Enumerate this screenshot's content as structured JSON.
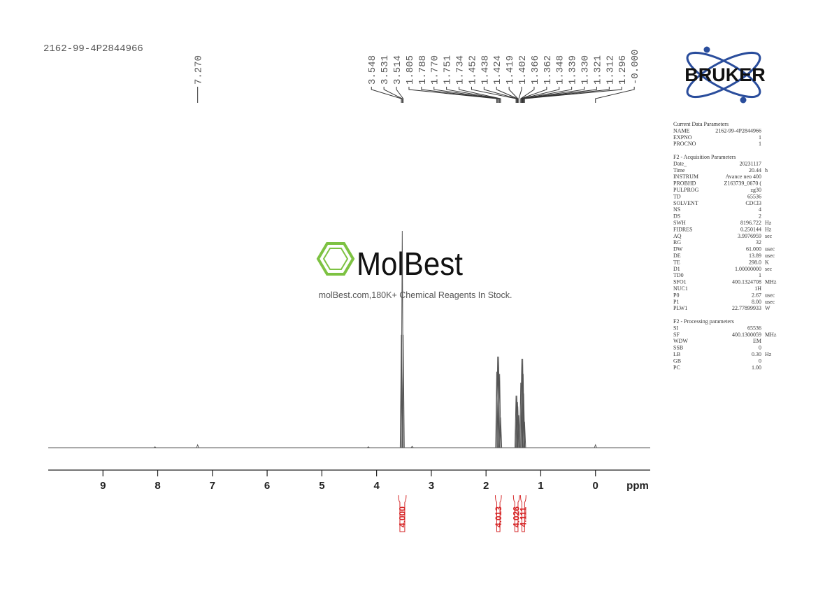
{
  "chart_data": {
    "type": "nmr",
    "sample": "2162-99-4P2844966",
    "xlabel": "ppm",
    "xlim": [
      10,
      -1
    ],
    "xticks": [
      9,
      8,
      7,
      6,
      5,
      4,
      3,
      2,
      1,
      0
    ],
    "ylim": [
      0,
      100
    ],
    "color": "#555555",
    "signals": {
      "x": [
        8.05,
        7.27,
        4.15,
        3.548,
        3.531,
        3.514,
        3.35,
        1.805,
        1.788,
        1.77,
        1.751,
        1.734,
        1.452,
        1.438,
        1.424,
        1.419,
        1.402,
        1.366,
        1.348,
        1.33,
        1.321,
        1.312,
        1.296,
        0.0
      ],
      "values": [
        0.4,
        1.3,
        0.4,
        52,
        100,
        52,
        0.6,
        35,
        42,
        42,
        34,
        14,
        24,
        24,
        21,
        19,
        15,
        30,
        41,
        41,
        34,
        25,
        12,
        1.3
      ]
    },
    "peaks": {
      "values": [
        7.27,
        3.548,
        3.531,
        3.514,
        1.805,
        1.788,
        1.77,
        1.751,
        1.734,
        1.452,
        1.438,
        1.424,
        1.419,
        1.402,
        1.366,
        1.362,
        1.348,
        1.339,
        1.33,
        1.321,
        1.312,
        1.296,
        0.0
      ],
      "value_labels": [
        "7.270",
        "3.548",
        "3.531",
        "3.514",
        "1.805",
        "1.788",
        "1.770",
        "1.751",
        "1.734",
        "1.452",
        "1.438",
        "1.424",
        "1.419",
        "1.402",
        "1.366",
        "1.362",
        "1.348",
        "1.339",
        "1.330",
        "1.321",
        "1.312",
        "1.296",
        "-0.000"
      ]
    },
    "integrals": {
      "ranges": [
        [
          3.6,
          3.46
        ],
        [
          1.83,
          1.72
        ],
        [
          1.5,
          1.39
        ],
        [
          1.37,
          1.27
        ]
      ],
      "values": [
        4.0,
        4.013,
        4.026,
        4.111
      ],
      "value_labels": [
        "4.000",
        "4.013",
        "4.026",
        "4.111"
      ],
      "color": "#d62728"
    },
    "watermark": {
      "brand": "MolBest",
      "text": "molBest.com,180K+ Chemical Reagents In Stock."
    },
    "logo": "BRUKER",
    "parameters": [
      {
        "title": "Current Data Parameters",
        "rows": [
          [
            "NAME",
            "2162-99-4P2844966"
          ],
          [
            "EXPNO",
            "1"
          ],
          [
            "PROCNO",
            "1"
          ]
        ]
      },
      {
        "title": "F2 - Acquisition Parameters",
        "rows": [
          [
            "Date_",
            "20231117"
          ],
          [
            "Time",
            "20.44",
            "h"
          ],
          [
            "INSTRUM",
            "Avance neo 400"
          ],
          [
            "PROBHD",
            "Z163739_0670 ("
          ],
          [
            "PULPROG",
            "zg30"
          ],
          [
            "TD",
            "65536"
          ],
          [
            "SOLVENT",
            "CDCl3"
          ],
          [
            "NS",
            "4"
          ],
          [
            "DS",
            "2"
          ],
          [
            "SWH",
            "8196.722",
            "Hz"
          ],
          [
            "FIDRES",
            "0.250144",
            "Hz"
          ],
          [
            "AQ",
            "3.9976959",
            "sec"
          ],
          [
            "RG",
            "32"
          ],
          [
            "DW",
            "61.000",
            "usec"
          ],
          [
            "DE",
            "13.89",
            "usec"
          ],
          [
            "TE",
            "298.0",
            "K"
          ],
          [
            "D1",
            "1.00000000",
            "sec"
          ],
          [
            "TD0",
            "1"
          ],
          [
            "SFO1",
            "400.1324708",
            "MHz"
          ],
          [
            "NUC1",
            "1H"
          ],
          [
            "P0",
            "2.67",
            "usec"
          ],
          [
            "P1",
            "8.00",
            "usec"
          ],
          [
            "PLW1",
            "22.77899933",
            "W"
          ]
        ]
      },
      {
        "title": "F2 - Processing parameters",
        "rows": [
          [
            "SI",
            "65536"
          ],
          [
            "SF",
            "400.1300059",
            "MHz"
          ],
          [
            "WDW",
            "EM"
          ],
          [
            "SSB",
            "0"
          ],
          [
            "LB",
            "0.30",
            "Hz"
          ],
          [
            "GB",
            "0"
          ],
          [
            "PC",
            "1.00"
          ]
        ]
      }
    ]
  }
}
